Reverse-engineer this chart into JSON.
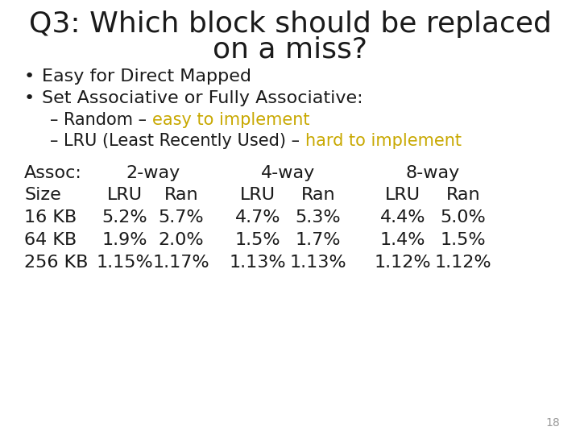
{
  "title_line1": "Q3: Which block should be replaced",
  "title_line2": "on a miss?",
  "bullet1": "Easy for Direct Mapped",
  "bullet2": "Set Associative or Fully Associative:",
  "sub1_black": "– Random – ",
  "sub1_gold": "easy to implement",
  "sub2_black": "– LRU (Least Recently Used) – ",
  "sub2_gold": "hard to implement",
  "table_header_cols": [
    "Assoc:",
    "2-way",
    "4-way",
    "8-way"
  ],
  "table_subheader": [
    "Size",
    "LRU",
    "Ran",
    "LRU",
    "Ran",
    "LRU",
    "Ran"
  ],
  "table_row1": [
    "16 KB",
    "5.2%",
    "5.7%",
    "4.7%",
    "5.3%",
    "4.4%",
    "5.0%"
  ],
  "table_row2": [
    "64 KB",
    "1.9%",
    "2.0%",
    "1.5%",
    "1.7%",
    "1.4%",
    "1.5%"
  ],
  "table_row3": [
    "256 KB",
    "1.15%",
    "1.17%",
    "1.13%",
    "1.13%",
    "1.12%",
    "1.12%"
  ],
  "gold_color": "#C8A800",
  "black_color": "#1a1a1a",
  "bg_color": "#ffffff",
  "page_number": "18",
  "title_fontsize": 26,
  "body_fontsize": 16,
  "sub_fontsize": 15,
  "table_fontsize": 16
}
